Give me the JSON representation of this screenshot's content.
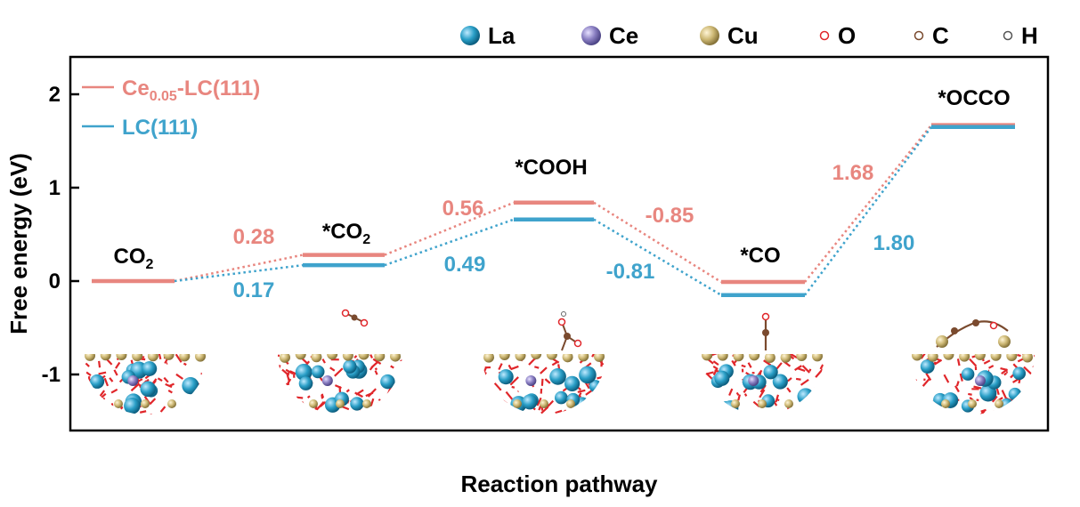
{
  "chart_data": {
    "type": "line",
    "title": "",
    "xlabel": "Reaction pathway",
    "ylabel": "Free energy (eV)",
    "ylim": [
      -1.6,
      2.45
    ],
    "yticks": [
      2,
      1,
      0,
      -1
    ],
    "ytick_labels": [
      "2",
      "1",
      "0",
      "-1"
    ],
    "states": [
      {
        "label": "CO",
        "sub": "2"
      },
      {
        "label": "*CO",
        "sub": "2"
      },
      {
        "label": "*COOH",
        "sub": ""
      },
      {
        "label": "*CO",
        "sub": ""
      },
      {
        "label": "*OCCO",
        "sub": ""
      }
    ],
    "series": [
      {
        "name_main": "Ce",
        "name_sub": "0.05",
        "name_rest": "-LC(111)",
        "color": "#e8867f",
        "values": [
          0.0,
          0.28,
          0.84,
          -0.01,
          1.67
        ],
        "step_labels": [
          "0.28",
          "0.56",
          "-0.85",
          "1.68"
        ]
      },
      {
        "name_main": "LC(111)",
        "name_sub": "",
        "name_rest": "",
        "color": "#3fa3cc",
        "values": [
          0.0,
          0.17,
          0.66,
          -0.15,
          1.65
        ],
        "step_labels": [
          "0.17",
          "0.49",
          "-0.81",
          "1.80"
        ]
      }
    ],
    "atom_legend": [
      {
        "symbol": "La",
        "color": "#2a9fc7",
        "size": "large"
      },
      {
        "symbol": "Ce",
        "color": "#8a7fc2",
        "size": "large"
      },
      {
        "symbol": "Cu",
        "color": "#cdb874",
        "size": "large"
      },
      {
        "symbol": "O",
        "color": "#e0262a",
        "size": "small"
      },
      {
        "symbol": "C",
        "color": "#7a4a2e",
        "size": "small"
      },
      {
        "symbol": "H",
        "color": "#f0f0f0",
        "size": "small"
      }
    ]
  }
}
